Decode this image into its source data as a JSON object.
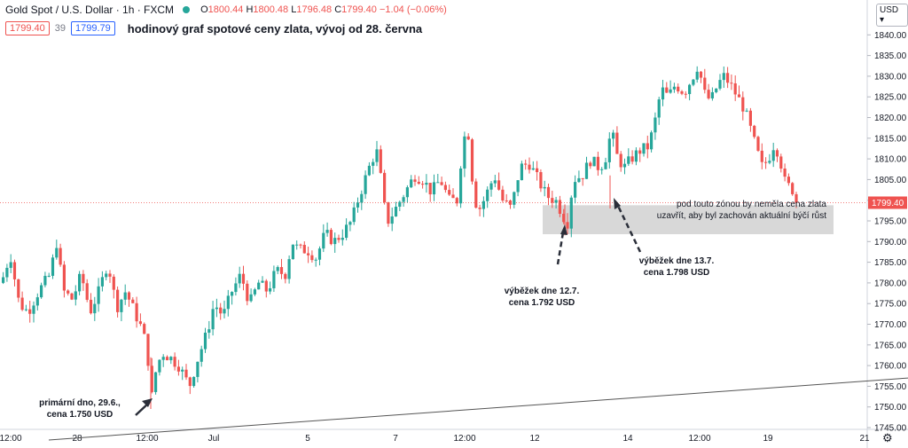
{
  "header": {
    "symbol": "Gold Spot / U.S. Dollar · 1h · FXCM",
    "open_label": "O",
    "open": "1800.44",
    "high_label": "H",
    "high": "1800.48",
    "low_label": "L",
    "low": "1796.48",
    "close_label": "C",
    "close": "1799.40",
    "change": "−1.04 (−0.06%)",
    "bid": "1799.40",
    "spread": "39",
    "ask": "1799.79",
    "subtitle": "hodinový graf spotové ceny zlata, vývoj od 28. června",
    "currency_button": "USD",
    "settings_icon": "gear-icon"
  },
  "colors": {
    "up": "#26a69a",
    "down": "#ef5350",
    "price_tag": "#ef5350",
    "zone": "#d1d1d1"
  },
  "chart_data": {
    "type": "candlestick",
    "ylim": [
      1742,
      1845
    ],
    "y_ticks": [
      1745,
      1750,
      1755,
      1760,
      1765,
      1770,
      1775,
      1780,
      1785,
      1790,
      1795,
      1800,
      1805,
      1810,
      1815,
      1820,
      1825,
      1830,
      1835,
      1840
    ],
    "x_tick_labels": [
      "12:00",
      "28",
      "12:00",
      "Jul",
      "5",
      "7",
      "12:00",
      "12",
      "14",
      "12:00",
      "19",
      "21"
    ],
    "last_price": 1799.4,
    "price_path": [
      [
        0,
        1780
      ],
      [
        10,
        1787
      ],
      [
        20,
        1775
      ],
      [
        30,
        1773
      ],
      [
        42,
        1778
      ],
      [
        55,
        1782
      ],
      [
        62,
        1790
      ],
      [
        70,
        1778
      ],
      [
        80,
        1776
      ],
      [
        90,
        1782
      ],
      [
        100,
        1773
      ],
      [
        110,
        1778
      ],
      [
        120,
        1785
      ],
      [
        130,
        1774
      ],
      [
        140,
        1778
      ],
      [
        150,
        1773
      ],
      [
        160,
        1768
      ],
      [
        165,
        1762
      ],
      [
        170,
        1752
      ],
      [
        175,
        1760
      ],
      [
        182,
        1763
      ],
      [
        190,
        1762
      ],
      [
        200,
        1760
      ],
      [
        212,
        1755
      ],
      [
        222,
        1762
      ],
      [
        232,
        1768
      ],
      [
        240,
        1775
      ],
      [
        250,
        1772
      ],
      [
        260,
        1778
      ],
      [
        270,
        1782
      ],
      [
        280,
        1775
      ],
      [
        290,
        1780
      ],
      [
        300,
        1778
      ],
      [
        310,
        1783
      ],
      [
        320,
        1782
      ],
      [
        328,
        1790
      ],
      [
        335,
        1788
      ],
      [
        345,
        1788
      ],
      [
        355,
        1786
      ],
      [
        365,
        1792
      ],
      [
        375,
        1790
      ],
      [
        385,
        1792
      ],
      [
        395,
        1795
      ],
      [
        402,
        1800
      ],
      [
        410,
        1805
      ],
      [
        418,
        1810
      ],
      [
        425,
        1812
      ],
      [
        430,
        1800
      ],
      [
        436,
        1795
      ],
      [
        442,
        1797
      ],
      [
        450,
        1800
      ],
      [
        458,
        1803
      ],
      [
        466,
        1806
      ],
      [
        475,
        1805
      ],
      [
        485,
        1802
      ],
      [
        495,
        1805
      ],
      [
        505,
        1800
      ],
      [
        515,
        1800
      ],
      [
        520,
        1815
      ],
      [
        527,
        1816
      ],
      [
        533,
        1800
      ],
      [
        540,
        1798
      ],
      [
        548,
        1802
      ],
      [
        556,
        1806
      ],
      [
        565,
        1800
      ],
      [
        575,
        1798
      ],
      [
        585,
        1808
      ],
      [
        595,
        1809
      ],
      [
        605,
        1805
      ],
      [
        615,
        1801
      ],
      [
        625,
        1800
      ],
      [
        632,
        1797
      ],
      [
        638,
        1794
      ],
      [
        645,
        1805
      ],
      [
        655,
        1806
      ],
      [
        665,
        1810
      ],
      [
        672,
        1808
      ],
      [
        680,
        1809
      ],
      [
        688,
        1817
      ],
      [
        695,
        1810
      ],
      [
        703,
        1808
      ],
      [
        710,
        1810
      ],
      [
        720,
        1812
      ],
      [
        730,
        1813
      ],
      [
        738,
        1820
      ],
      [
        744,
        1827
      ],
      [
        752,
        1825
      ],
      [
        760,
        1828
      ],
      [
        770,
        1826
      ],
      [
        780,
        1830
      ],
      [
        786,
        1833
      ],
      [
        792,
        1826
      ],
      [
        800,
        1824
      ],
      [
        808,
        1828
      ],
      [
        815,
        1830
      ],
      [
        822,
        1828
      ],
      [
        830,
        1825
      ],
      [
        838,
        1822
      ],
      [
        845,
        1817
      ],
      [
        852,
        1812
      ],
      [
        858,
        1808
      ],
      [
        865,
        1810
      ],
      [
        872,
        1814
      ],
      [
        878,
        1810
      ],
      [
        884,
        1804
      ],
      [
        890,
        1803
      ],
      [
        895,
        1802
      ],
      [
        899,
        1799.4
      ]
    ],
    "zone": {
      "low": 1792,
      "high": 1799
    },
    "trendline": [
      [
        55,
        1742
      ],
      [
        1024,
        1757
      ]
    ],
    "annotations": [
      {
        "id": "primary-low",
        "lines": [
          "primární dno, 29.6.,",
          "cena 1.750 USD"
        ]
      },
      {
        "id": "wick-12-7",
        "lines": [
          "výběžek dne 12.7.",
          "cena 1.792 USD"
        ]
      },
      {
        "id": "wick-13-7",
        "lines": [
          "výběžek dne 13.7.",
          "cena 1.798 USD"
        ]
      },
      {
        "id": "zone-note",
        "lines": [
          "pod touto zónou by neměla cena zlata",
          "uzavřít, aby byl zachován aktuální býčí růst"
        ]
      }
    ]
  }
}
